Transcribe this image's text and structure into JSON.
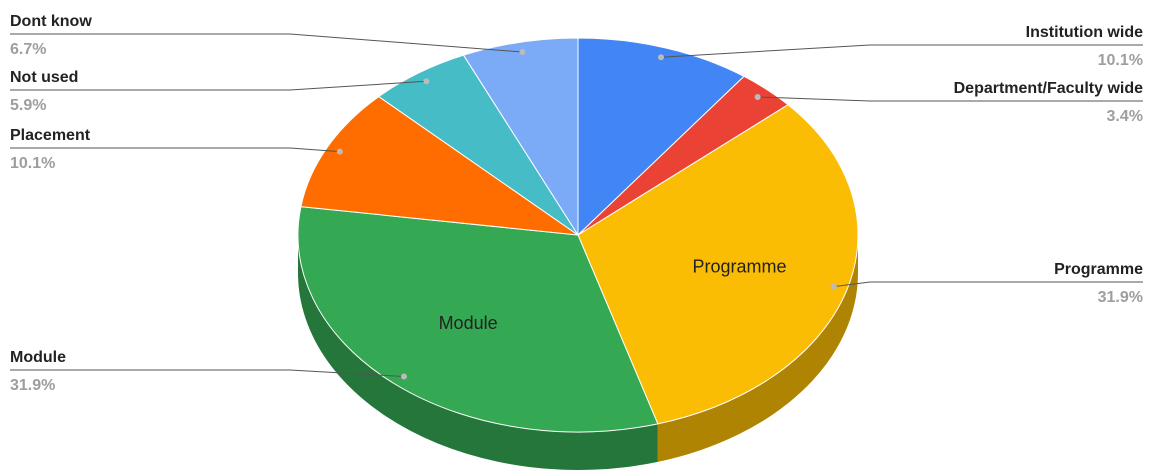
{
  "chart_data": {
    "type": "pie",
    "categories": [
      "Institution wide",
      "Department/Faculty wide",
      "Programme",
      "Module",
      "Placement",
      "Not used",
      "Dont know"
    ],
    "values": [
      10.1,
      3.4,
      31.9,
      31.9,
      10.1,
      5.9,
      6.7
    ],
    "value_labels": [
      "10.1%",
      "3.4%",
      "31.9%",
      "31.9%",
      "10.1%",
      "5.9%",
      "6.7%"
    ],
    "colors": [
      "#4285f4",
      "#ea4335",
      "#fbbc04",
      "#34a853",
      "#ff6d01",
      "#46bdc6",
      "#7baaf7"
    ],
    "three_d": true
  }
}
